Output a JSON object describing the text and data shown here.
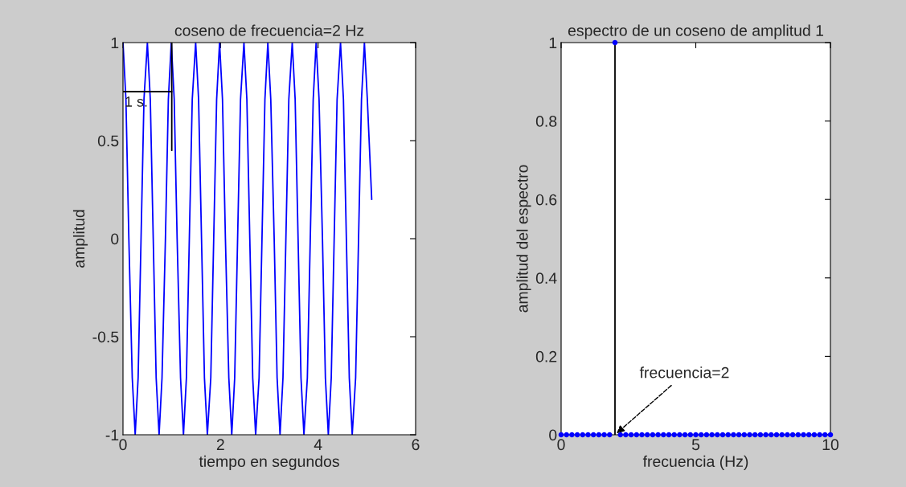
{
  "chart_data": [
    {
      "type": "line",
      "title": "coseno de frecuencia=2 Hz",
      "xlabel": "tiempo en segundos",
      "ylabel": "amplitud",
      "xlim": [
        0,
        6
      ],
      "xticks": [
        0,
        2,
        4,
        6
      ],
      "ylim": [
        -1,
        1
      ],
      "yticks": [
        -1,
        -0.5,
        0,
        0.5,
        1
      ],
      "grid": false,
      "series": [
        {
          "color": "#0000ff",
          "x": [
            0.0,
            0.06,
            0.12,
            0.19,
            0.25,
            0.31,
            0.37,
            0.43,
            0.5,
            0.56,
            0.62,
            0.68,
            0.74,
            0.8,
            0.87,
            0.93,
            0.99,
            1.05,
            1.11,
            1.18,
            1.24,
            1.3,
            1.36,
            1.42,
            1.49,
            1.55,
            1.61,
            1.67,
            1.73,
            1.8,
            1.86,
            1.92,
            1.98,
            2.04,
            2.1,
            2.17,
            2.23,
            2.29,
            2.35,
            2.41,
            2.48,
            2.54,
            2.6,
            2.66,
            2.72,
            2.79,
            2.85,
            2.91,
            2.97,
            3.03,
            3.1,
            3.16,
            3.22,
            3.28,
            3.34,
            3.4,
            3.47,
            3.53,
            3.59,
            3.65,
            3.71,
            3.78,
            3.84,
            3.9,
            3.96,
            4.02,
            4.09,
            4.15,
            4.21,
            4.27,
            4.33,
            4.39,
            4.46,
            4.52,
            4.58,
            4.64,
            4.7,
            4.77,
            4.83,
            4.89,
            4.95,
            5.01,
            5.1
          ],
          "values": [
            1,
            0.71,
            0,
            -0.71,
            -1,
            -0.71,
            0,
            0.71,
            1,
            0.71,
            0,
            -0.71,
            -1,
            -0.71,
            0,
            0.71,
            1,
            0.71,
            0,
            -0.71,
            -1,
            -0.71,
            0,
            0.71,
            1,
            0.71,
            0,
            -0.71,
            -1,
            -0.71,
            0,
            0.71,
            1,
            0.71,
            0,
            -0.71,
            -1,
            -0.71,
            0,
            0.71,
            1,
            0.71,
            0,
            -0.71,
            -1,
            -0.71,
            0,
            0.71,
            1,
            0.71,
            0,
            -0.71,
            -1,
            -0.71,
            0,
            0.71,
            1,
            0.71,
            0,
            -0.71,
            -1,
            -0.71,
            0,
            0.71,
            1,
            0.71,
            0,
            -0.71,
            -1,
            -0.71,
            0,
            0.71,
            1,
            0.71,
            0,
            -0.71,
            -1,
            -0.71,
            0,
            0.71,
            1,
            0.71,
            0.2
          ]
        },
        {
          "color": "#000000",
          "x": [
            0,
            1
          ],
          "values": [
            0.75,
            0.75
          ]
        },
        {
          "color": "#000000",
          "x": [
            1,
            1
          ],
          "values": [
            0.45,
            1
          ]
        }
      ],
      "annotations": [
        {
          "text": "1 s.",
          "x": 0.5,
          "y": 0.75
        }
      ]
    },
    {
      "type": "scatter",
      "title": "espectro de un coseno de amplitud 1",
      "xlabel": "frecuencia (Hz)",
      "ylabel": "amplitud del espectro",
      "xlim": [
        0,
        10
      ],
      "xticks": [
        0,
        5,
        10
      ],
      "ylim": [
        0,
        1
      ],
      "yticks": [
        0,
        0.2,
        0.4,
        0.6,
        0.8,
        1
      ],
      "grid": false,
      "series": [
        {
          "type": "line",
          "color": "#000000",
          "x": [
            2,
            2
          ],
          "values": [
            0,
            1
          ]
        },
        {
          "color": "#0000ff",
          "marker": "circle",
          "x": [
            0,
            0.2,
            0.4,
            0.6,
            0.8,
            1,
            1.2,
            1.4,
            1.6,
            1.8,
            2,
            2.2,
            2.4,
            2.6,
            2.8,
            3,
            3.2,
            3.4,
            3.6,
            3.8,
            4,
            4.2,
            4.4,
            4.6,
            4.8,
            5,
            5.2,
            5.4,
            5.6,
            5.8,
            6,
            6.2,
            6.4,
            6.6,
            6.8,
            7,
            7.2,
            7.4,
            7.6,
            7.8,
            8,
            8.2,
            8.4,
            8.6,
            8.8,
            9,
            9.2,
            9.4,
            9.6,
            9.8,
            10
          ],
          "values": [
            0,
            0,
            0,
            0,
            0,
            0,
            0,
            0,
            0,
            0,
            1,
            0,
            0,
            0,
            0,
            0,
            0,
            0,
            0,
            0,
            0,
            0,
            0,
            0,
            0,
            0,
            0,
            0,
            0,
            0,
            0,
            0,
            0,
            0,
            0,
            0,
            0,
            0,
            0,
            0,
            0,
            0,
            0,
            0,
            0,
            0,
            0,
            0,
            0,
            0,
            0
          ]
        }
      ],
      "annotations": [
        {
          "text": "frecuencia=2",
          "x": 2,
          "y": 0
        }
      ]
    }
  ]
}
